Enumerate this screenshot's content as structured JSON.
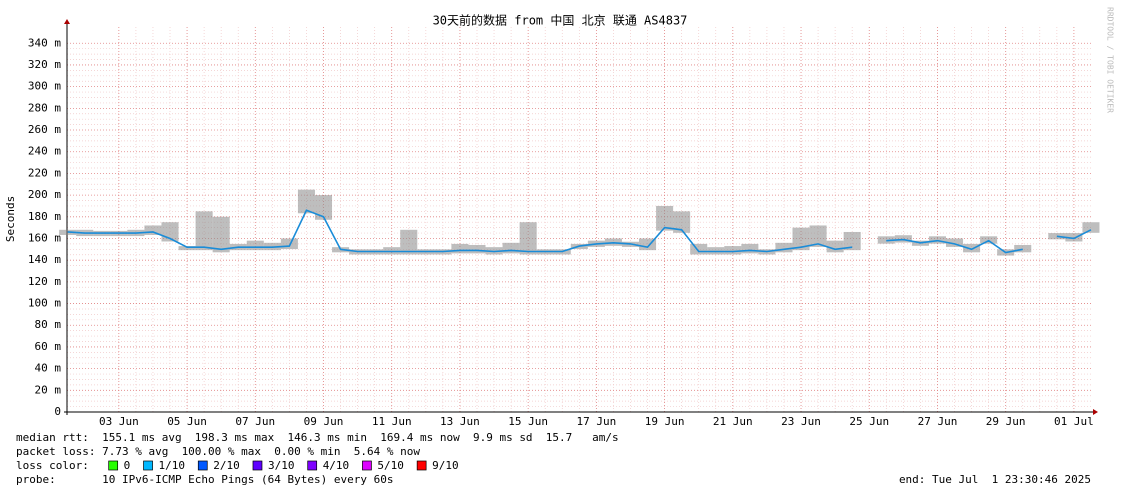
{
  "chart_data": {
    "type": "smokeline",
    "title": "30天前的数据 from 中国 北京 联通 AS4837",
    "y_label": "Seconds",
    "watermark": "RRDTOOL / TOBI OETIKER",
    "xlim": [
      1.48,
      31.56
    ],
    "xticks": [
      {
        "value": 3,
        "label": "03 Jun"
      },
      {
        "value": 5,
        "label": "05 Jun"
      },
      {
        "value": 7,
        "label": "07 Jun"
      },
      {
        "value": 9,
        "label": "09 Jun"
      },
      {
        "value": 11,
        "label": "11 Jun"
      },
      {
        "value": 13,
        "label": "13 Jun"
      },
      {
        "value": 15,
        "label": "15 Jun"
      },
      {
        "value": 17,
        "label": "17 Jun"
      },
      {
        "value": 19,
        "label": "19 Jun"
      },
      {
        "value": 21,
        "label": "21 Jun"
      },
      {
        "value": 23,
        "label": "23 Jun"
      },
      {
        "value": 25,
        "label": "25 Jun"
      },
      {
        "value": 27,
        "label": "27 Jun"
      },
      {
        "value": 29,
        "label": "29 Jun"
      },
      {
        "value": 31,
        "label": "01 Jul"
      }
    ],
    "ylim": [
      0,
      355
    ],
    "yticks": [
      0,
      {
        "value": 20,
        "label": "20 m"
      },
      {
        "value": 40,
        "label": "40 m"
      },
      {
        "value": 60,
        "label": "60 m"
      },
      {
        "value": 80,
        "label": "80 m"
      },
      {
        "value": 100,
        "label": "100 m"
      },
      {
        "value": 120,
        "label": "120 m"
      },
      {
        "value": 140,
        "label": "140 m"
      },
      {
        "value": 160,
        "label": "160 m"
      },
      {
        "value": 180,
        "label": "180 m"
      },
      {
        "value": 200,
        "label": "200 m"
      },
      {
        "value": 220,
        "label": "220 m"
      },
      {
        "value": 240,
        "label": "240 m"
      },
      {
        "value": 260,
        "label": "260 m"
      },
      {
        "value": 280,
        "label": "280 m"
      },
      {
        "value": 300,
        "label": "300 m"
      },
      {
        "value": 320,
        "label": "320 m"
      },
      {
        "value": 340,
        "label": "340 m"
      }
    ],
    "grid": true,
    "x": [
      1.5,
      2,
      2.5,
      3,
      3.5,
      4,
      4.5,
      5,
      5.5,
      6,
      6.5,
      7,
      7.5,
      8,
      8.5,
      9,
      9.5,
      10,
      10.5,
      11,
      11.5,
      12,
      12.5,
      13,
      13.5,
      14,
      14.5,
      15,
      15.5,
      16,
      16.5,
      17,
      17.5,
      18,
      18.5,
      19,
      19.5,
      20,
      20.5,
      21,
      21.5,
      22,
      22.5,
      23,
      23.5,
      24,
      24.5,
      25,
      25.5,
      26,
      26.5,
      27,
      27.5,
      28,
      28.5,
      29,
      29.5,
      30,
      30.5,
      31,
      31.5
    ],
    "series": [
      {
        "color": "#1a8cd8",
        "values": [
          166,
          165,
          165,
          165,
          165,
          166,
          160,
          152,
          152,
          150,
          152,
          152,
          152,
          153,
          186,
          180,
          150,
          148,
          148,
          148,
          148,
          148,
          148,
          149,
          149,
          148,
          149,
          148,
          148,
          148,
          153,
          155,
          156,
          155,
          152,
          170,
          168,
          148,
          148,
          148,
          149,
          148,
          150,
          152,
          155,
          150,
          152,
          null,
          158,
          159,
          156,
          158,
          155,
          150,
          158,
          147,
          150,
          null,
          162,
          160,
          168
        ]
      },
      {
        "color": "#888888",
        "values": [
          168,
          168,
          167,
          167,
          168,
          172,
          175,
          153,
          185,
          180,
          155,
          158,
          156,
          160,
          205,
          200,
          152,
          150,
          150,
          152,
          168,
          150,
          150,
          155,
          154,
          152,
          156,
          175,
          150,
          150,
          155,
          158,
          160,
          157,
          160,
          190,
          185,
          155,
          152,
          153,
          155,
          150,
          156,
          170,
          172,
          158,
          166,
          null,
          162,
          163,
          158,
          162,
          160,
          155,
          162,
          150,
          154,
          null,
          165,
          165,
          175
        ]
      }
    ],
    "legend_title": "loss color:",
    "legend": [
      {
        "label": "0",
        "color": "#26ff00"
      },
      {
        "label": "1/10",
        "color": "#00b8ff"
      },
      {
        "label": "2/10",
        "color": "#0059ff"
      },
      {
        "label": "3/10",
        "color": "#5e00ff"
      },
      {
        "label": "4/10",
        "color": "#7e00ff"
      },
      {
        "label": "5/10",
        "color": "#dd00ff"
      },
      {
        "label": "9/10",
        "color": "#ff0000"
      }
    ],
    "stats": [
      "median rtt:  155.1 ms avg  198.3 ms max  146.3 ms min  169.4 ms now  9.9 ms sd  15.7   am/s",
      "packet loss: 7.73 % avg  100.00 % max  0.00 % min  5.64 % now"
    ],
    "probe": "probe:       10 IPv6-ICMP Echo Pings (64 Bytes) every 60s",
    "end": "end: Tue Jul  1 23:30:46 2025"
  }
}
